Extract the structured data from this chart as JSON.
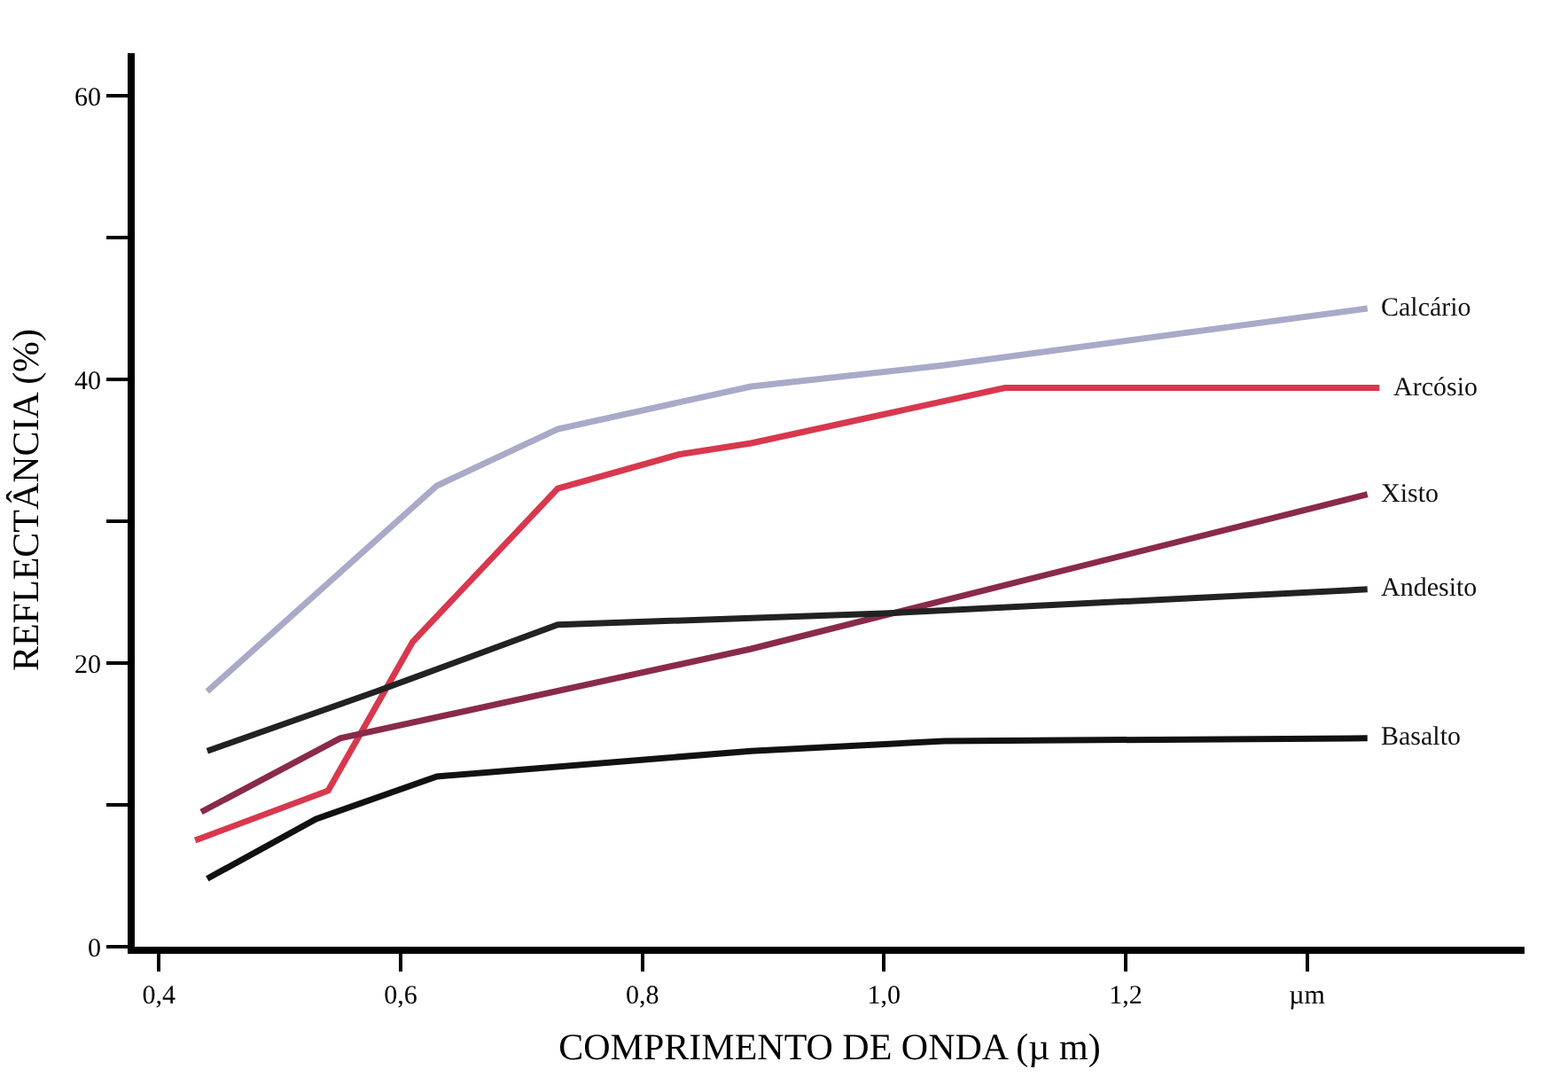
{
  "chart_data": {
    "type": "line",
    "xlabel": "COMPRIMENTO DE ONDA (µ m)",
    "ylabel": "REFLECTÂNCIA (%)",
    "xlim": [
      0.38,
      1.53
    ],
    "ylim": [
      0,
      63
    ],
    "xticks": [
      {
        "value": 0.4,
        "label": "0,4"
      },
      {
        "value": 0.6,
        "label": "0,6"
      },
      {
        "value": 0.8,
        "label": "0,8"
      },
      {
        "value": 1.0,
        "label": "1,0"
      },
      {
        "value": 1.2,
        "label": "1,2"
      },
      {
        "value": 1.35,
        "label": "µm"
      }
    ],
    "yticks": [
      0,
      {
        "value": 10,
        "label": null
      },
      20,
      {
        "value": 30,
        "label": null
      },
      40,
      {
        "value": 50,
        "label": null
      },
      60
    ],
    "legend": false,
    "marker": "none",
    "line_style": "solid",
    "series": [
      {
        "name": "Calcário",
        "color": "#a8aac8",
        "x": [
          0.44,
          0.63,
          0.73,
          0.89,
          1.05,
          1.4
        ],
        "values": [
          18,
          32.5,
          36.5,
          39.5,
          41,
          45
        ]
      },
      {
        "name": "Arcósio",
        "color": "#d8384e",
        "x": [
          0.43,
          0.54,
          0.61,
          0.73,
          0.83,
          0.89,
          1.1,
          1.41
        ],
        "values": [
          7.5,
          11,
          21.5,
          32.3,
          34.7,
          35.5,
          39.4,
          39.4
        ]
      },
      {
        "name": "Xisto",
        "color": "#8a2a4a",
        "x": [
          0.435,
          0.55,
          0.89,
          1.4
        ],
        "values": [
          9.5,
          14.7,
          21,
          31.9
        ]
      },
      {
        "name": "Andesito",
        "color": "#222222",
        "x": [
          0.44,
          0.58,
          0.73,
          1.0,
          1.4
        ],
        "values": [
          13.8,
          18,
          22.7,
          23.5,
          25.2
        ]
      },
      {
        "name": "Basalto",
        "color": "#111111",
        "x": [
          0.44,
          0.53,
          0.63,
          0.89,
          1.05,
          1.4
        ],
        "values": [
          4.8,
          9,
          12,
          13.8,
          14.5,
          14.7
        ]
      }
    ]
  }
}
